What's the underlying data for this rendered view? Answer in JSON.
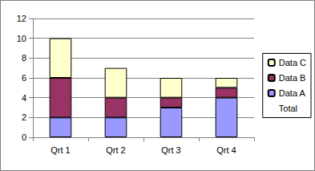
{
  "chart_data": {
    "type": "bar",
    "categories": [
      "Qrt 1",
      "Qrt 2",
      "Qrt 3",
      "Qrt 4"
    ],
    "series": [
      {
        "name": "Data A",
        "type": "bar",
        "color": "#9999ff",
        "values": [
          2,
          2,
          3,
          4
        ]
      },
      {
        "name": "Data B",
        "type": "bar",
        "color": "#993366",
        "values": [
          4,
          2,
          1,
          1
        ]
      },
      {
        "name": "Data C",
        "type": "bar",
        "color": "#ffffcc",
        "values": [
          4,
          3,
          2,
          1
        ]
      },
      {
        "name": "Total",
        "type": "line",
        "marker": "none",
        "line_style": "none",
        "data_labels": true,
        "values": [
          10,
          7,
          6,
          6
        ]
      }
    ],
    "stacked": true,
    "ylim": [
      0,
      12
    ],
    "yticks": [
      0,
      2,
      4,
      6,
      8,
      10,
      12
    ],
    "grid": true,
    "legend": "right"
  }
}
